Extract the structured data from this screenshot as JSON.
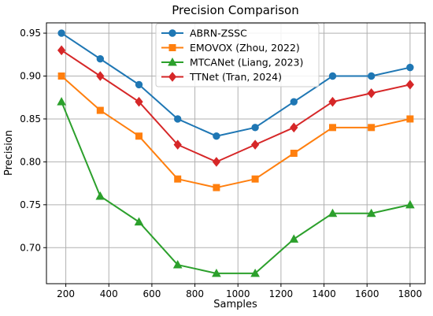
{
  "chart_data": {
    "type": "line",
    "title": "Precision Comparison",
    "xlabel": "Samples",
    "ylabel": "Precision",
    "x": [
      180,
      360,
      540,
      720,
      900,
      1080,
      1260,
      1440,
      1620,
      1800
    ],
    "xlim": [
      110,
      1870
    ],
    "ylim": [
      0.658,
      0.962
    ],
    "xticks": [
      "200",
      "400",
      "600",
      "800",
      "1000",
      "1200",
      "1400",
      "1600",
      "1800"
    ],
    "yticks": [
      "0.70",
      "0.75",
      "0.80",
      "0.85",
      "0.90",
      "0.95"
    ],
    "grid": true,
    "legend_position": "top-center",
    "series": [
      {
        "name": "ABRN-ZSSC",
        "color": "#1f77b4",
        "marker": "circle",
        "values": [
          0.95,
          0.92,
          0.89,
          0.85,
          0.83,
          0.84,
          0.87,
          0.9,
          0.9,
          0.91
        ]
      },
      {
        "name": "EMOVOX (Zhou, 2022)",
        "color": "#ff7f0e",
        "marker": "square",
        "values": [
          0.9,
          0.86,
          0.83,
          0.78,
          0.77,
          0.78,
          0.81,
          0.84,
          0.84,
          0.85
        ]
      },
      {
        "name": "MTCANet (Liang, 2023)",
        "color": "#2ca02c",
        "marker": "triangle",
        "values": [
          0.87,
          0.76,
          0.73,
          0.68,
          0.67,
          0.67,
          0.71,
          0.74,
          0.74,
          0.75
        ]
      },
      {
        "name": "TTNet (Tran, 2024)",
        "color": "#d62728",
        "marker": "diamond",
        "values": [
          0.93,
          0.9,
          0.87,
          0.82,
          0.8,
          0.82,
          0.84,
          0.87,
          0.88,
          0.89
        ]
      }
    ]
  }
}
